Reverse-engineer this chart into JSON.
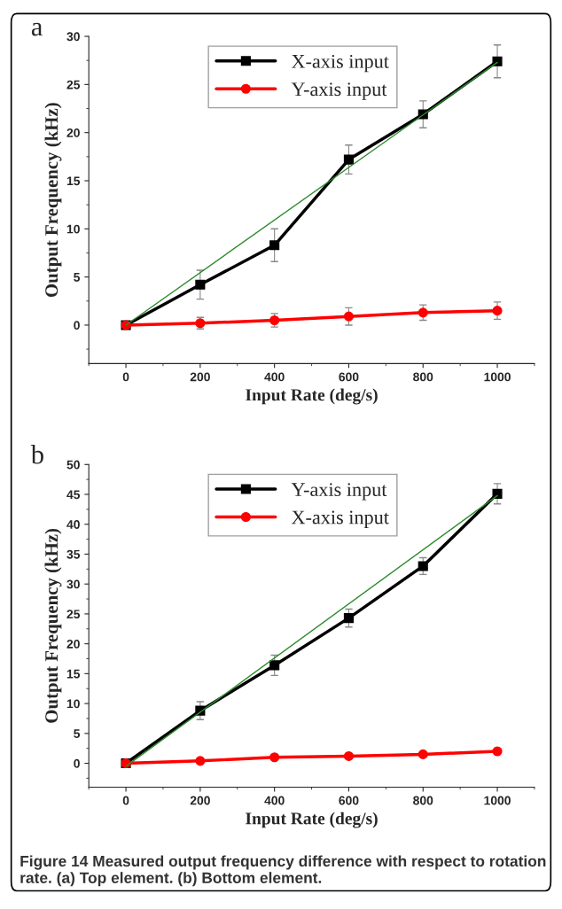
{
  "chart_data": [
    {
      "type": "line",
      "title": "a",
      "xlabel": "Input Rate (deg/s)",
      "ylabel": "Output Frequency (kHz)",
      "xlim": [
        -100,
        1100
      ],
      "xticks": [
        0,
        200,
        400,
        600,
        800,
        1000
      ],
      "ylim": [
        -4,
        30
      ],
      "yticks": [
        0,
        5,
        10,
        15,
        20,
        25,
        30
      ],
      "grid": false,
      "legend": "top",
      "line_style": "solid",
      "series": [
        {
          "name": "X-axis input",
          "color": "#000000",
          "marker": "square",
          "x": [
            0,
            200,
            400,
            600,
            800,
            1000
          ],
          "values": [
            0,
            4.2,
            8.3,
            17.2,
            21.9,
            27.4
          ],
          "errors": [
            null,
            1.5,
            1.7,
            1.5,
            1.4,
            1.7
          ]
        },
        {
          "name": "Y-axis input",
          "color": "#ff0000",
          "marker": "circle",
          "x": [
            0,
            200,
            400,
            600,
            800,
            1000
          ],
          "values": [
            0,
            0.2,
            0.5,
            0.9,
            1.3,
            1.5
          ],
          "errors": [
            null,
            0.6,
            0.7,
            0.9,
            0.8,
            0.9
          ]
        },
        {
          "type": "line",
          "color": "#2e8b2e",
          "marker": "none",
          "x": [
            0,
            1000
          ],
          "values": [
            0,
            27.3
          ]
        }
      ]
    },
    {
      "type": "line",
      "title": "b",
      "xlabel": "Input Rate (deg/s)",
      "ylabel": "Output Frequency (kHz)",
      "xlim": [
        -100,
        1100
      ],
      "xticks": [
        0,
        200,
        400,
        600,
        800,
        1000
      ],
      "ylim": [
        -4,
        50
      ],
      "yticks": [
        0,
        5,
        10,
        15,
        20,
        25,
        30,
        35,
        40,
        45,
        50
      ],
      "grid": false,
      "legend": "top",
      "line_style": "solid",
      "series": [
        {
          "name": "Y-axis input",
          "color": "#000000",
          "marker": "square",
          "x": [
            0,
            200,
            400,
            600,
            800,
            1000
          ],
          "values": [
            0,
            8.8,
            16.4,
            24.3,
            33.0,
            45.1
          ],
          "errors": [
            null,
            1.5,
            1.7,
            1.5,
            1.4,
            1.7
          ]
        },
        {
          "name": "X-axis input",
          "color": "#ff0000",
          "marker": "circle",
          "x": [
            0,
            200,
            400,
            600,
            800,
            1000
          ],
          "values": [
            0,
            0.4,
            1.0,
            1.2,
            1.5,
            2.0
          ]
        },
        {
          "type": "line",
          "color": "#2e8b2e",
          "marker": "none",
          "x": [
            0,
            1000
          ],
          "values": [
            -0.5,
            44.8
          ]
        }
      ],
      "annotations": [
        "Figure 14 Measured output frequency difference with respect to rotation rate. (a) Top element. (b) Bottom element."
      ]
    }
  ]
}
